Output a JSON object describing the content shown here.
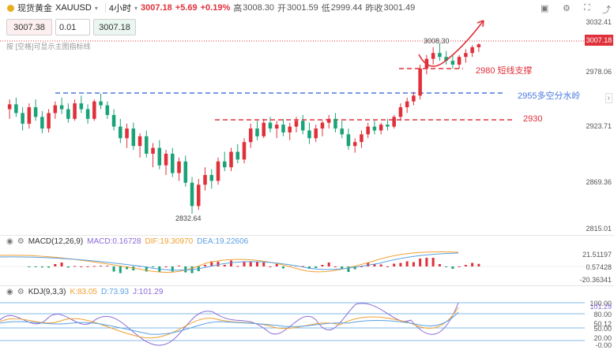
{
  "header": {
    "title": "现货黄金",
    "symbol": "XAUUSD",
    "interval": "4小时",
    "price": "3007.18",
    "change": "+5.69",
    "change_pct": "+0.19%",
    "high_label": "高",
    "high": "3008.30",
    "open_label": "开",
    "open": "3001.59",
    "low_label": "低",
    "low": "2999.44",
    "prevclose_label": "昨收",
    "prevclose": "3001.49"
  },
  "controls": {
    "bid": "3007.38",
    "qty": "0.01",
    "ask": "3007.18",
    "hint": "按 [空格]可显示主图指标线"
  },
  "price_axis": [
    "3032.41",
    "3007.18",
    "2978.06",
    "2923.71",
    "2869.36",
    "2815.01"
  ],
  "annotations": {
    "peak": "3008.30",
    "low": "2832.64",
    "support_2980": "2980 短线支撑",
    "watershed_2955": "2955多空分水岭",
    "level_2930": "2930"
  },
  "macd": {
    "label": "MACD(12,26,9)",
    "macd": "MACD:0.16728",
    "dif": "DIF:19.30970",
    "dea": "DEA:19.22606",
    "axis": [
      "21.51197",
      "0.57428",
      "-20.36341"
    ]
  },
  "kdj": {
    "label": "KDJ(9,3,3)",
    "k": "K:83.05",
    "d": "D:73.93",
    "j": "J:101.29",
    "axis": [
      "100.00",
      "101.29",
      "80.00",
      "50.12",
      "50.00",
      "20.00",
      "-0.00"
    ]
  },
  "colors": {
    "up": "#e0303a",
    "down": "#1aa278",
    "blue_line": "#4a78e0",
    "red_line": "#e0303a",
    "macd_orange": "#f0a030",
    "macd_blue": "#5aa0e0",
    "kdj_purple": "#8a6ad8"
  },
  "chart_data": {
    "type": "candlestick",
    "title": "现货黄金 XAUUSD 4小时",
    "ylim": [
      2815.01,
      3032.41
    ],
    "candles": [
      [
        2940,
        2950,
        2930,
        2945
      ],
      [
        2945,
        2952,
        2932,
        2936
      ],
      [
        2936,
        2942,
        2918,
        2925
      ],
      [
        2925,
        2946,
        2920,
        2942
      ],
      [
        2942,
        2950,
        2928,
        2932
      ],
      [
        2932,
        2938,
        2915,
        2920
      ],
      [
        2920,
        2940,
        2916,
        2936
      ],
      [
        2936,
        2948,
        2930,
        2944
      ],
      [
        2944,
        2952,
        2935,
        2940
      ],
      [
        2940,
        2946,
        2926,
        2930
      ],
      [
        2930,
        2950,
        2928,
        2946
      ],
      [
        2946,
        2954,
        2936,
        2940
      ],
      [
        2940,
        2945,
        2925,
        2930
      ],
      [
        2930,
        2950,
        2928,
        2948
      ],
      [
        2948,
        2956,
        2940,
        2944
      ],
      [
        2944,
        2948,
        2930,
        2934
      ],
      [
        2934,
        2940,
        2918,
        2922
      ],
      [
        2922,
        2930,
        2905,
        2910
      ],
      [
        2910,
        2925,
        2900,
        2920
      ],
      [
        2920,
        2926,
        2898,
        2902
      ],
      [
        2902,
        2915,
        2890,
        2912
      ],
      [
        2912,
        2918,
        2890,
        2894
      ],
      [
        2894,
        2905,
        2880,
        2900
      ],
      [
        2900,
        2908,
        2878,
        2882
      ],
      [
        2882,
        2898,
        2872,
        2894
      ],
      [
        2894,
        2900,
        2870,
        2874
      ],
      [
        2874,
        2890,
        2866,
        2886
      ],
      [
        2886,
        2892,
        2860,
        2864
      ],
      [
        2864,
        2870,
        2832,
        2840
      ],
      [
        2840,
        2868,
        2836,
        2862
      ],
      [
        2862,
        2880,
        2856,
        2872
      ],
      [
        2872,
        2878,
        2858,
        2866
      ],
      [
        2866,
        2890,
        2862,
        2886
      ],
      [
        2886,
        2896,
        2876,
        2880
      ],
      [
        2880,
        2900,
        2876,
        2896
      ],
      [
        2896,
        2904,
        2884,
        2888
      ],
      [
        2888,
        2910,
        2884,
        2906
      ],
      [
        2906,
        2925,
        2900,
        2920
      ],
      [
        2920,
        2928,
        2908,
        2912
      ],
      [
        2912,
        2930,
        2910,
        2926
      ],
      [
        2926,
        2932,
        2916,
        2920
      ],
      [
        2920,
        2928,
        2910,
        2924
      ],
      [
        2924,
        2930,
        2912,
        2916
      ],
      [
        2916,
        2926,
        2908,
        2922
      ],
      [
        2922,
        2932,
        2916,
        2928
      ],
      [
        2928,
        2934,
        2914,
        2918
      ],
      [
        2918,
        2926,
        2904,
        2910
      ],
      [
        2910,
        2924,
        2906,
        2920
      ],
      [
        2920,
        2928,
        2912,
        2926
      ],
      [
        2926,
        2934,
        2920,
        2930
      ],
      [
        2930,
        2936,
        2916,
        2920
      ],
      [
        2920,
        2928,
        2910,
        2914
      ],
      [
        2914,
        2920,
        2898,
        2902
      ],
      [
        2902,
        2910,
        2895,
        2906
      ],
      [
        2906,
        2918,
        2900,
        2914
      ],
      [
        2914,
        2926,
        2910,
        2922
      ],
      [
        2922,
        2928,
        2914,
        2918
      ],
      [
        2918,
        2926,
        2914,
        2924
      ],
      [
        2924,
        2930,
        2918,
        2922
      ],
      [
        2922,
        2934,
        2920,
        2932
      ],
      [
        2932,
        2946,
        2928,
        2942
      ],
      [
        2942,
        2952,
        2936,
        2948
      ],
      [
        2948,
        2958,
        2944,
        2954
      ],
      [
        2954,
        2986,
        2950,
        2982
      ],
      [
        2982,
        2996,
        2976,
        2992
      ],
      [
        2992,
        3004,
        2986,
        2998
      ],
      [
        2998,
        3008,
        2990,
        2994
      ],
      [
        2994,
        3000,
        2986,
        2990
      ],
      [
        2990,
        2996,
        2982,
        2986
      ],
      [
        2986,
        2996,
        2982,
        2994
      ],
      [
        2994,
        3002,
        2988,
        2998
      ],
      [
        2998,
        3006,
        2994,
        3004
      ],
      [
        3004,
        3008,
        2999,
        3007
      ]
    ]
  }
}
